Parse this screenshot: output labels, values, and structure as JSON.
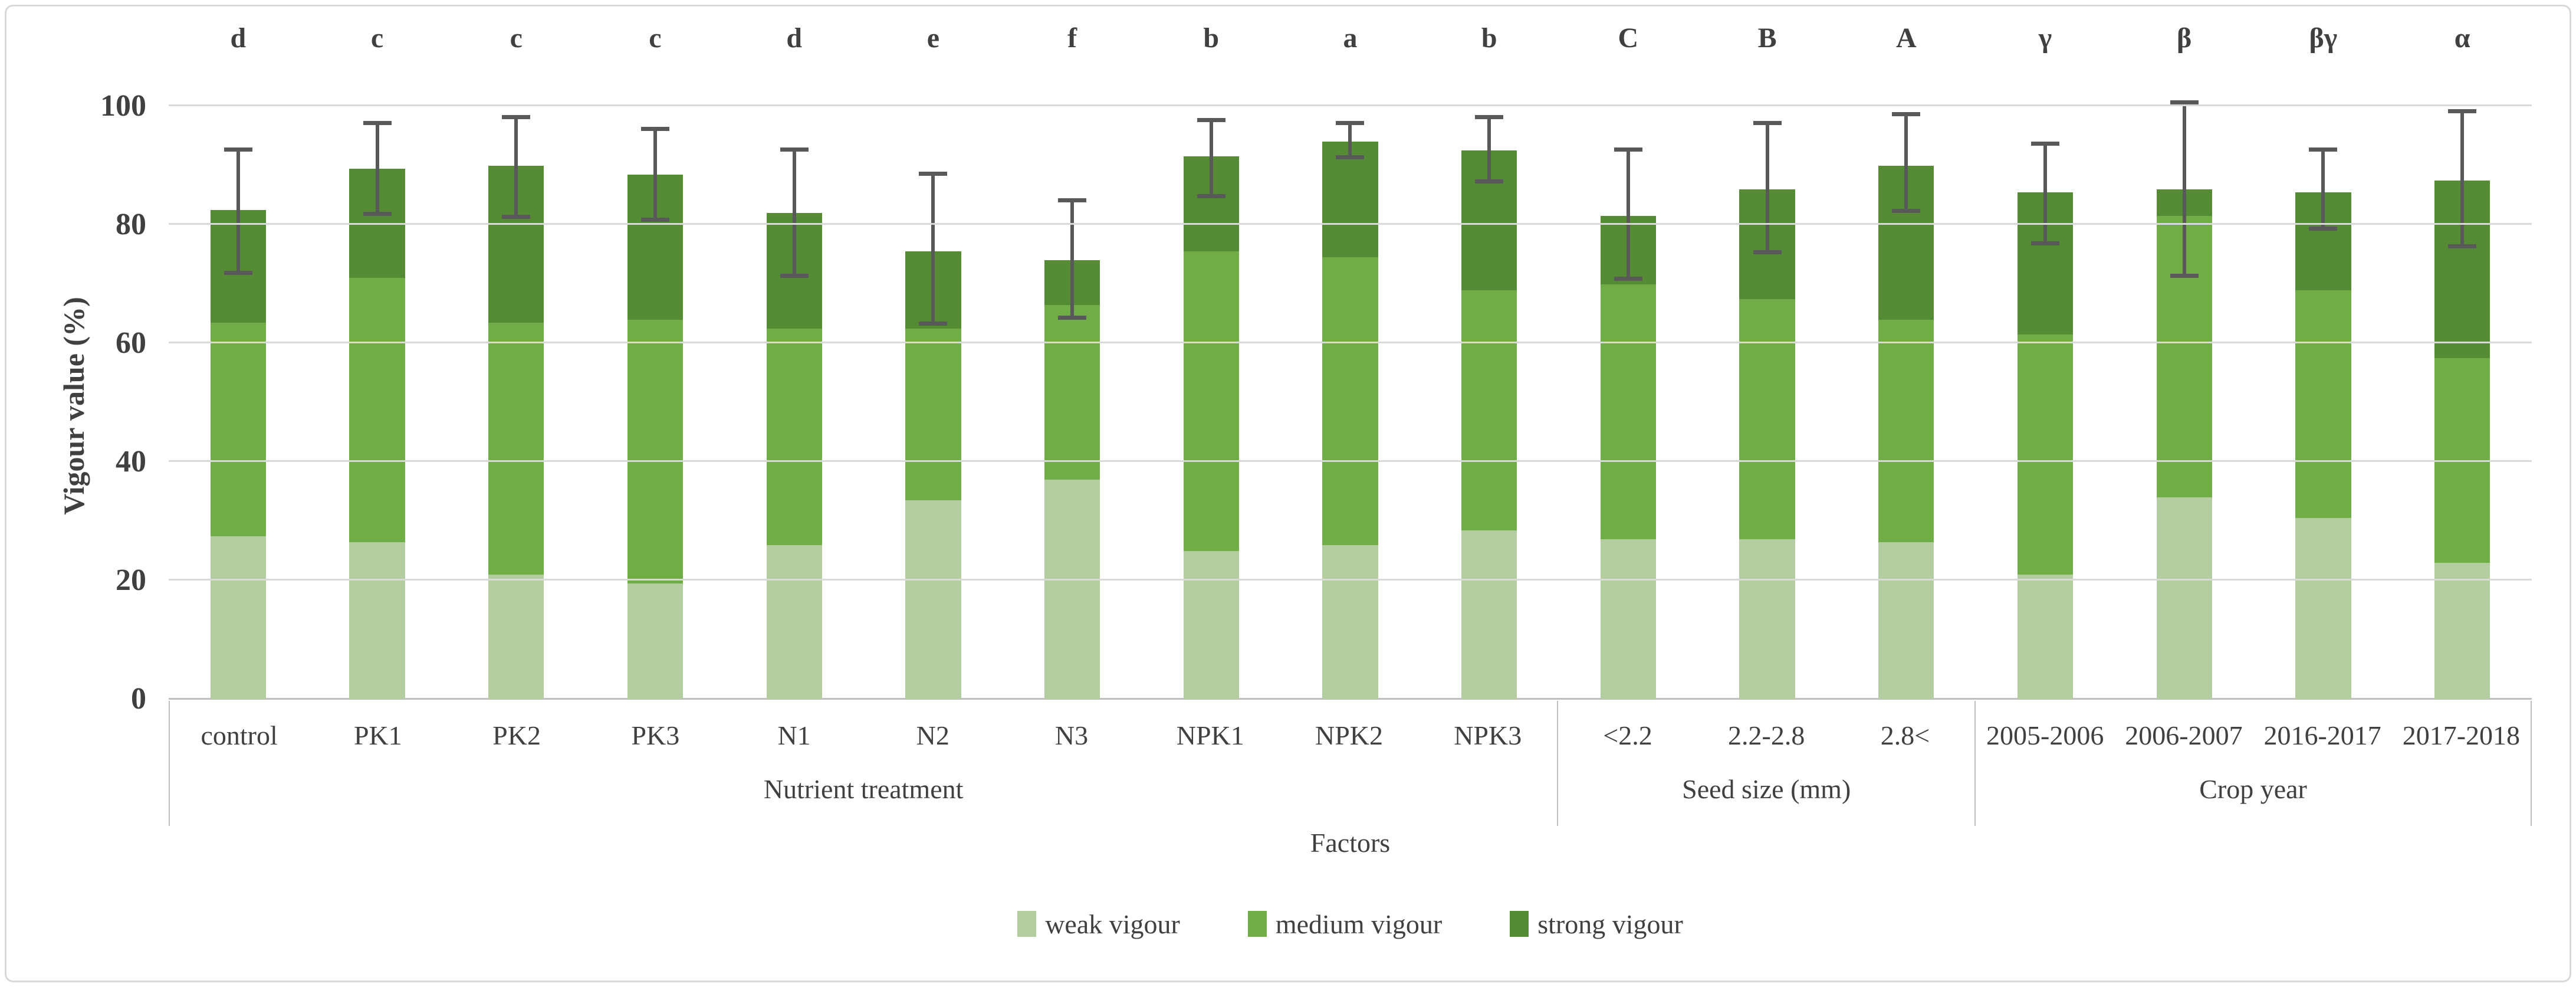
{
  "chart_data": {
    "type": "bar",
    "subtype": "stacked-vertical-with-error-bars",
    "title": "",
    "ylabel": "Vigour value (%)",
    "xlabel": "Factors",
    "ylim": [
      0,
      100
    ],
    "yticks": [
      0,
      20,
      40,
      60,
      80,
      100
    ],
    "grid": true,
    "legend_position": "bottom-center",
    "groups": [
      {
        "label": "Nutrient treatment",
        "categories": [
          "control",
          "PK1",
          "PK2",
          "PK3",
          "N1",
          "N2",
          "N3",
          "NPK1",
          "NPK2",
          "NPK3"
        ]
      },
      {
        "label": "Seed size (mm)",
        "categories": [
          "<2.2",
          "2.2-2.8",
          "2.8<"
        ]
      },
      {
        "label": "Crop year",
        "categories": [
          "2005-2006",
          "2006-2007",
          "2016-2017",
          "2017-2018"
        ]
      }
    ],
    "series": [
      {
        "name": "weak vigour",
        "color": "#b3cda0",
        "values": [
          27.5,
          26.5,
          21.0,
          19.5,
          26.0,
          33.5,
          37.0,
          25.0,
          26.0,
          28.5,
          27.0,
          27.0,
          26.5,
          21.0,
          34.0,
          30.5,
          23.0
        ]
      },
      {
        "name": "medium vigour",
        "color": "#70ad47",
        "values": [
          36.0,
          44.5,
          42.5,
          44.5,
          36.5,
          29.0,
          29.5,
          50.5,
          48.5,
          40.5,
          43.0,
          40.5,
          37.5,
          40.5,
          47.5,
          38.5,
          34.5
        ]
      },
      {
        "name": "strong vigour",
        "color": "#568b35",
        "values": [
          19.0,
          18.5,
          26.5,
          24.5,
          19.5,
          13.0,
          7.5,
          16.0,
          19.5,
          23.5,
          11.5,
          18.5,
          26.0,
          24.0,
          4.5,
          16.5,
          30.0
        ]
      }
    ],
    "totals": [
      82.5,
      89.5,
      90.0,
      88.5,
      82.0,
      75.5,
      74.0,
      91.5,
      94.0,
      92.5,
      81.5,
      86.0,
      90.0,
      85.5,
      86.0,
      85.5,
      87.5
    ],
    "significance_letters": [
      "d",
      "c",
      "c",
      "c",
      "d",
      "e",
      "f",
      "b",
      "a",
      "b",
      "C",
      "B",
      "A",
      "γ",
      "β",
      "βγ",
      "α"
    ],
    "error_bars": {
      "low": [
        71.5,
        81.5,
        81.0,
        80.5,
        71.0,
        63.0,
        64.0,
        84.5,
        91.0,
        87.0,
        70.5,
        75.0,
        82.0,
        76.5,
        71.0,
        79.0,
        76.0
      ],
      "high": [
        93.0,
        97.5,
        98.5,
        96.5,
        93.0,
        89.0,
        84.5,
        98.0,
        97.5,
        98.5,
        93.0,
        97.5,
        99.0,
        94.0,
        101.0,
        93.0,
        99.5
      ]
    }
  },
  "colors": {
    "gridline": "#d9d9d9",
    "axis_line": "#bfbfbf",
    "error_bar": "#595959",
    "text": "#404040",
    "frame_border": "#d9d9d9",
    "background": "#ffffff"
  }
}
